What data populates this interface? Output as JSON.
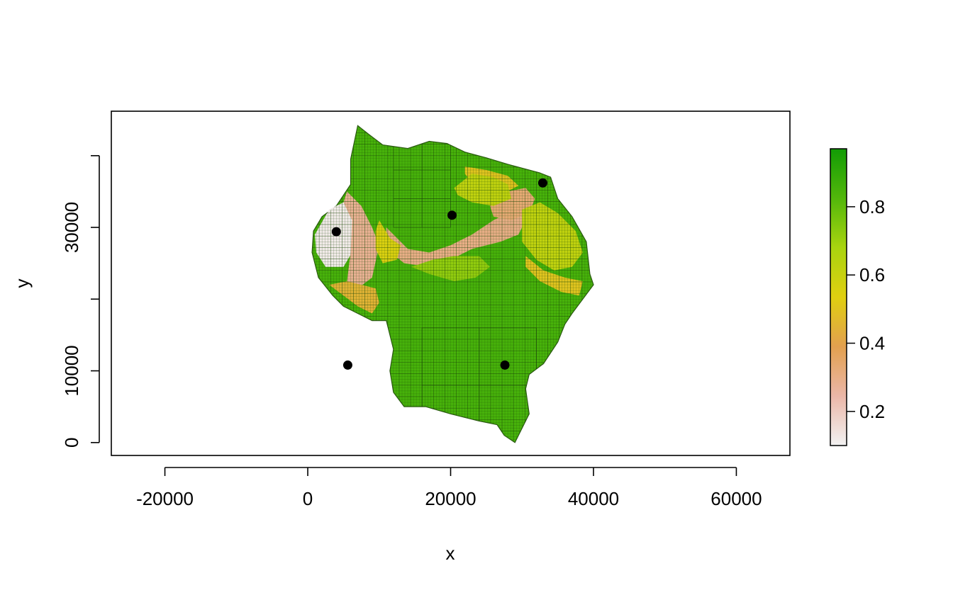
{
  "chart_data": {
    "type": "heatmap",
    "title": "",
    "xlabel": "x",
    "ylabel": "y",
    "xlim": [
      -27500,
      67500
    ],
    "ylim": [
      -1800,
      46200
    ],
    "x_ticks": [
      {
        "value": -20000,
        "label": "-20000"
      },
      {
        "value": 0,
        "label": "0"
      },
      {
        "value": 20000,
        "label": "20000"
      },
      {
        "value": 40000,
        "label": "40000"
      },
      {
        "value": 60000,
        "label": "60000"
      }
    ],
    "y_ticks": [
      {
        "value": 0,
        "label": "0"
      },
      {
        "value": 10000,
        "label": "10000"
      },
      {
        "value": 20000,
        "label": ""
      },
      {
        "value": 30000,
        "label": "30000"
      },
      {
        "value": 40000,
        "label": ""
      }
    ],
    "legend": {
      "placement": "right",
      "range": [
        0.1,
        0.97
      ],
      "ticks": [
        {
          "value": 0.2,
          "label": "0.2"
        },
        {
          "value": 0.4,
          "label": "0.4"
        },
        {
          "value": 0.6,
          "label": "0.6"
        },
        {
          "value": 0.8,
          "label": "0.8"
        }
      ],
      "colors": [
        "#f2f2f2",
        "#ebb7a8",
        "#e2a04f",
        "#e0cf10",
        "#a9d40f",
        "#52b70b",
        "#129c05"
      ]
    },
    "points": [
      {
        "x": 4000,
        "y": 29400
      },
      {
        "x": 20200,
        "y": 31700
      },
      {
        "x": 32900,
        "y": 36200
      },
      {
        "x": 5600,
        "y": 10800
      },
      {
        "x": 27600,
        "y": 10800
      }
    ],
    "regions": [
      {
        "value": 0.85,
        "polygon": [
          [
            7000,
            44200
          ],
          [
            8500,
            43000
          ],
          [
            10500,
            41500
          ],
          [
            14000,
            41000
          ],
          [
            17000,
            42000
          ],
          [
            19500,
            41700
          ],
          [
            22000,
            40500
          ],
          [
            25000,
            39700
          ],
          [
            28000,
            38800
          ],
          [
            32500,
            37600
          ],
          [
            34000,
            37000
          ],
          [
            35000,
            34000
          ],
          [
            37000,
            31500
          ],
          [
            39000,
            28000
          ],
          [
            39500,
            23500
          ],
          [
            40000,
            22000
          ],
          [
            38500,
            20000
          ],
          [
            37000,
            18000
          ],
          [
            36000,
            16500
          ],
          [
            35000,
            14000
          ],
          [
            33000,
            11000
          ],
          [
            31000,
            9500
          ],
          [
            30500,
            7500
          ],
          [
            31000,
            4000
          ],
          [
            29000,
            0
          ],
          [
            27500,
            1000
          ],
          [
            26500,
            2500
          ],
          [
            24000,
            3000
          ],
          [
            20000,
            4000
          ],
          [
            16500,
            5000
          ],
          [
            13500,
            5000
          ],
          [
            12000,
            7000
          ],
          [
            11500,
            10000
          ],
          [
            12000,
            13000
          ],
          [
            11000,
            17000
          ],
          [
            9000,
            17000
          ],
          [
            7000,
            18000
          ],
          [
            5000,
            19000
          ],
          [
            3500,
            20500
          ],
          [
            1500,
            23000
          ],
          [
            600,
            26500
          ],
          [
            800,
            29500
          ],
          [
            2000,
            31500
          ],
          [
            4000,
            33000
          ],
          [
            6000,
            36000
          ],
          [
            6000,
            39500
          ]
        ]
      },
      {
        "value": 0.12,
        "polygon": [
          [
            1000,
            29000
          ],
          [
            3000,
            32500
          ],
          [
            5000,
            33500
          ],
          [
            6500,
            31500
          ],
          [
            6500,
            27000
          ],
          [
            5000,
            24500
          ],
          [
            2500,
            24500
          ],
          [
            1200,
            26500
          ]
        ]
      },
      {
        "value": 0.28,
        "polygon": [
          [
            5500,
            35000
          ],
          [
            7500,
            33000
          ],
          [
            9000,
            30000
          ],
          [
            10000,
            27500
          ],
          [
            9000,
            23000
          ],
          [
            7000,
            21500
          ],
          [
            5500,
            22500
          ],
          [
            6000,
            26500
          ],
          [
            6200,
            31000
          ],
          [
            5000,
            33500
          ]
        ]
      },
      {
        "value": 0.3,
        "polygon": [
          [
            11000,
            30000
          ],
          [
            14000,
            27000
          ],
          [
            17000,
            26500
          ],
          [
            20000,
            27500
          ],
          [
            23000,
            29000
          ],
          [
            26000,
            31000
          ],
          [
            29000,
            32500
          ],
          [
            30500,
            31000
          ],
          [
            29500,
            29000
          ],
          [
            27000,
            28000
          ],
          [
            23000,
            27000
          ],
          [
            20000,
            25500
          ],
          [
            17000,
            24500
          ],
          [
            13500,
            25000
          ],
          [
            11000,
            27000
          ]
        ]
      },
      {
        "value": 0.33,
        "polygon": [
          [
            25500,
            33000
          ],
          [
            28000,
            35000
          ],
          [
            30500,
            35500
          ],
          [
            31800,
            34000
          ],
          [
            31000,
            32000
          ],
          [
            28500,
            31000
          ],
          [
            26000,
            31500
          ]
        ]
      },
      {
        "value": 0.45,
        "polygon": [
          [
            3000,
            22000
          ],
          [
            5000,
            20500
          ],
          [
            7000,
            19000
          ],
          [
            9000,
            18000
          ],
          [
            10000,
            19500
          ],
          [
            9500,
            21500
          ],
          [
            7500,
            22000
          ],
          [
            5500,
            22500
          ]
        ]
      },
      {
        "value": 0.5,
        "polygon": [
          [
            22000,
            38500
          ],
          [
            25000,
            38000
          ],
          [
            28000,
            37200
          ],
          [
            29500,
            35800
          ],
          [
            27500,
            34800
          ],
          [
            25000,
            35200
          ],
          [
            23000,
            36200
          ],
          [
            22000,
            37500
          ]
        ]
      },
      {
        "value": 0.5,
        "polygon": [
          [
            30500,
            26000
          ],
          [
            33000,
            24000
          ],
          [
            36000,
            23000
          ],
          [
            38500,
            22500
          ],
          [
            38000,
            20500
          ],
          [
            35500,
            21000
          ],
          [
            32500,
            22500
          ],
          [
            30500,
            24500
          ]
        ]
      },
      {
        "value": 0.62,
        "polygon": [
          [
            30000,
            32500
          ],
          [
            32500,
            33500
          ],
          [
            35000,
            32000
          ],
          [
            37500,
            29500
          ],
          [
            38500,
            26500
          ],
          [
            37000,
            24500
          ],
          [
            34500,
            24000
          ],
          [
            32000,
            25500
          ],
          [
            30000,
            28000
          ]
        ]
      },
      {
        "value": 0.62,
        "polygon": [
          [
            20500,
            35500
          ],
          [
            23000,
            37500
          ],
          [
            26000,
            37000
          ],
          [
            28000,
            36000
          ],
          [
            28500,
            34000
          ],
          [
            26000,
            33000
          ],
          [
            23000,
            33500
          ],
          [
            21000,
            34500
          ]
        ]
      },
      {
        "value": 0.55,
        "polygon": [
          [
            10000,
            31000
          ],
          [
            11500,
            28500
          ],
          [
            13000,
            27500
          ],
          [
            12500,
            25500
          ],
          [
            10500,
            25000
          ],
          [
            9500,
            27000
          ],
          [
            9500,
            29500
          ]
        ]
      },
      {
        "value": 0.72,
        "polygon": [
          [
            14500,
            24500
          ],
          [
            17000,
            23500
          ],
          [
            20500,
            22500
          ],
          [
            23500,
            23000
          ],
          [
            25500,
            24500
          ],
          [
            24000,
            26000
          ],
          [
            20500,
            26000
          ],
          [
            17500,
            25500
          ]
        ]
      }
    ]
  }
}
